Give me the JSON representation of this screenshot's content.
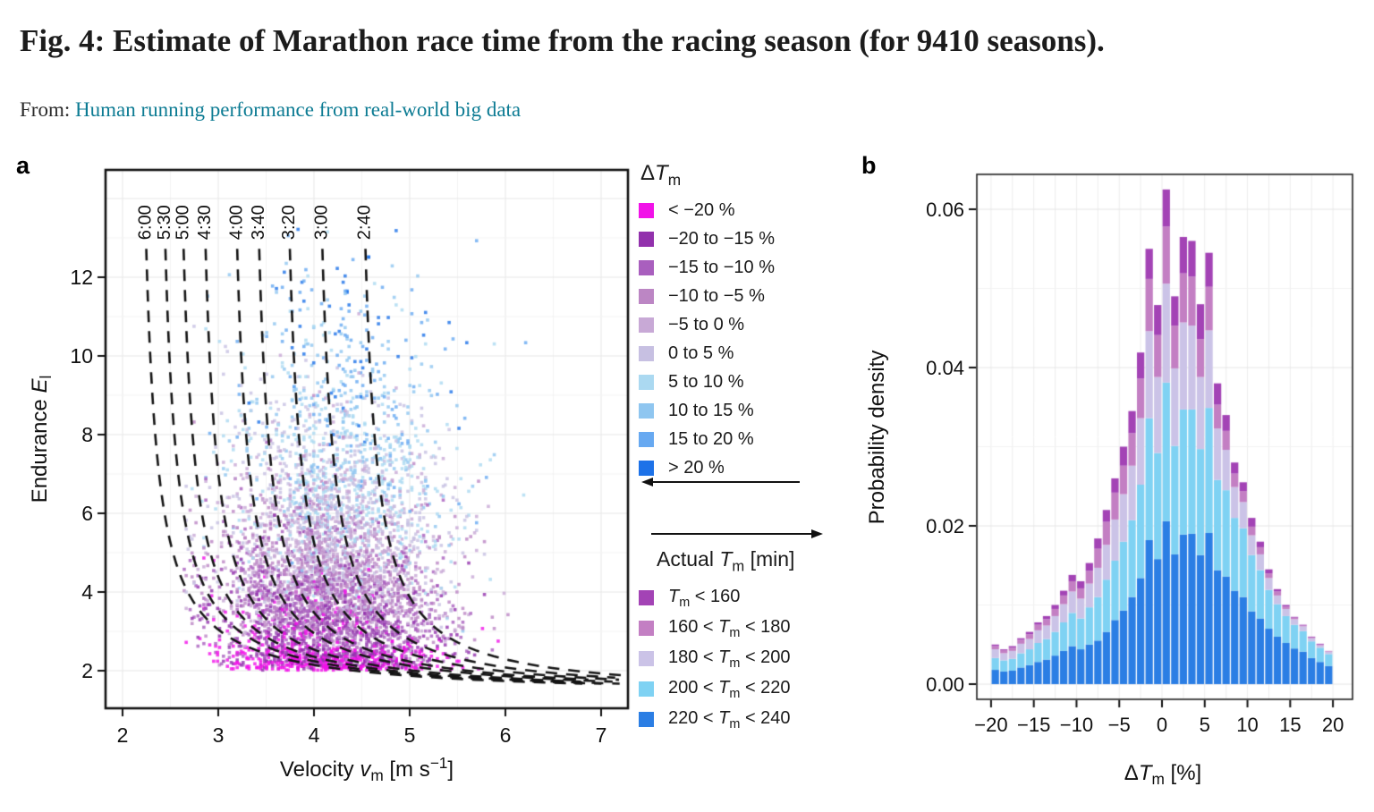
{
  "figure": {
    "title": "Fig. 4: Estimate of Marathon race time from the racing season (for 9410 seasons).",
    "from_label": "From:",
    "from_link_text": "Human running performance from real-world big data"
  },
  "styles": {
    "link_color": "#0c7b93",
    "title_color": "#1c1c1c",
    "axis_text_color": "#111111",
    "curve_color": "#141414",
    "grid_major": "#e7e7e7",
    "grid_minor": "#f3f3f3",
    "grid_b_vertical": "#ededed",
    "grid_b_major": "#e4e4e4",
    "grid_b_minor": "#f2f2f2",
    "box_color": "#111111"
  },
  "legend_delta": {
    "title_rich": [
      {
        "t": "Δ"
      },
      {
        "i": "T"
      },
      {
        "s": "m"
      }
    ],
    "items": [
      {
        "label": "< −20 %",
        "color": "#F112E8"
      },
      {
        "label": "−20 to −15 %",
        "color": "#9231AC"
      },
      {
        "label": "−15 to −10 %",
        "color": "#A95FBE"
      },
      {
        "label": "−10 to −5 %",
        "color": "#BC86C4"
      },
      {
        "label": "−5 to 0 %",
        "color": "#C8A9D6"
      },
      {
        "label": "0 to 5 %",
        "color": "#C7C0E2"
      },
      {
        "label": "5 to 10 %",
        "color": "#ABD9F1"
      },
      {
        "label": "10 to 15 %",
        "color": "#8FC6F0"
      },
      {
        "label": "15 to 20 %",
        "color": "#67A9F1"
      },
      {
        "label": "> 20 %",
        "color": "#1D72E8"
      }
    ],
    "arrow_left_icon": "arrow-left"
  },
  "legend_actual": {
    "title_rich": [
      {
        "t": "Actual "
      },
      {
        "i": "T"
      },
      {
        "s": "m"
      },
      {
        "t": " [min]"
      }
    ],
    "items": [
      {
        "label_rich": [
          {
            "i": "T"
          },
          {
            "s": "m"
          },
          {
            "t": " < 160"
          }
        ],
        "color": "#A343B5"
      },
      {
        "label_rich": [
          {
            "t": "160 < "
          },
          {
            "i": "T"
          },
          {
            "s": "m"
          },
          {
            "t": " < 180"
          }
        ],
        "color": "#C37FC3"
      },
      {
        "label_rich": [
          {
            "t": "180 < "
          },
          {
            "i": "T"
          },
          {
            "s": "m"
          },
          {
            "t": " < 200"
          }
        ],
        "color": "#CBC3E7"
      },
      {
        "label_rich": [
          {
            "t": "200 < "
          },
          {
            "i": "T"
          },
          {
            "s": "m"
          },
          {
            "t": " < 220"
          }
        ],
        "color": "#7FD2F3"
      },
      {
        "label_rich": [
          {
            "t": "220 < "
          },
          {
            "i": "T"
          },
          {
            "s": "m"
          },
          {
            "t": " < 240"
          }
        ],
        "color": "#2B7EE4"
      }
    ],
    "arrow_right_icon": "arrow-right"
  },
  "chart_data": [
    {
      "id": "a",
      "type": "scatter",
      "panel_letter": "a",
      "xlabel_rich": [
        {
          "t": "Velocity "
        },
        {
          "i": "v"
        },
        {
          "s": "m"
        },
        {
          "t": " [m s"
        },
        {
          "sup": "−1"
        },
        {
          "t": "]"
        }
      ],
      "ylabel_rich": [
        {
          "t": "Endurance "
        },
        {
          "i": "E"
        },
        {
          "s": "l"
        }
      ],
      "x_ticks": [
        2,
        3,
        4,
        5,
        6,
        7
      ],
      "y_ticks": [
        2,
        4,
        6,
        8,
        10,
        12
      ],
      "xlim": [
        1.82,
        7.28
      ],
      "ylim": [
        1.05,
        14.7
      ],
      "iso_time_curves": {
        "comment": "dashed curves of constant marathon time, x = a + b/(y - y0), a = v_top - 0.114",
        "b": 1.5,
        "y0": 1.35,
        "label_E": 12.95,
        "start_E": 12.72,
        "curves": [
          {
            "label": "6:00",
            "v_top": 2.23
          },
          {
            "label": "5:30",
            "v_top": 2.43
          },
          {
            "label": "5:00",
            "v_top": 2.62
          },
          {
            "label": "4:30",
            "v_top": 2.85
          },
          {
            "label": "4:00",
            "v_top": 3.18
          },
          {
            "label": "3:40",
            "v_top": 3.41
          },
          {
            "label": "3:20",
            "v_top": 3.73
          },
          {
            "label": "3:00",
            "v_top": 4.07
          },
          {
            "label": "2:40",
            "v_top": 4.52
          }
        ]
      },
      "point_categories": {
        "thresholds": [
          -20,
          -15,
          -10,
          -5,
          0,
          5,
          10,
          15,
          20
        ],
        "colors": [
          "#F112E8",
          "#9231AC",
          "#A95FBE",
          "#BC86C4",
          "#C8A9D6",
          "#C7C0E2",
          "#ABD9F1",
          "#8FC6F0",
          "#67A9F1",
          "#1D72E8"
        ]
      },
      "scatter_generator": {
        "comment": "9410 seasons in source; points synthesized to match visible density/pattern",
        "seed": 987654321,
        "n": 5200,
        "point_size": 3.6,
        "opacity": 0.8,
        "floor_fraction": 0.12,
        "floor": {
          "E_base": 2.02,
          "E_spread": 0.28,
          "v_mean": 4.25,
          "v_sd": 0.55,
          "v_min": 2.95,
          "v_max": 5.75
        },
        "main": {
          "E_base": 2.1,
          "gamma_scale": 1.5,
          "E_max": 13.3,
          "v_mean": 4.18,
          "v_sd": 0.6,
          "v_min": 2.62,
          "v_max": 6.92
        },
        "delta_model": {
          "c0": -28,
          "c1": 14.5,
          "v_coef": 1.8,
          "noise_sd": 6
        },
        "v_quantum": 0.0205,
        "E_quantum": 0.032
      }
    },
    {
      "id": "b",
      "type": "bar",
      "stacked": true,
      "panel_letter": "b",
      "xlabel_rich": [
        {
          "t": "Δ"
        },
        {
          "i": "T"
        },
        {
          "s": "m"
        },
        {
          "t": " [%]"
        }
      ],
      "ylabel": "Probability density",
      "x_ticks": [
        -20,
        -15,
        -10,
        -5,
        0,
        5,
        10,
        15,
        20
      ],
      "x_tick_labels": [
        "−20",
        "−15",
        "−10",
        "−5",
        "0",
        "5",
        "10",
        "15",
        "20"
      ],
      "y_ticks": [
        0,
        0.02,
        0.04,
        0.06
      ],
      "y_tick_labels": [
        "0.00",
        "0.02",
        "0.04",
        "0.06"
      ],
      "xlim": [
        -21.6,
        22.3
      ],
      "ylim": [
        0,
        0.0664
      ],
      "bins": {
        "first_center": -19.5,
        "width": 1,
        "count": 40
      },
      "series_bottom_to_top": [
        {
          "name": "220 < Tm < 240",
          "color": "#2B7EE4",
          "values": [
            0.0018,
            0.0016,
            0.0017,
            0.0021,
            0.0024,
            0.0028,
            0.0031,
            0.0036,
            0.0042,
            0.0048,
            0.0044,
            0.005,
            0.0055,
            0.0066,
            0.0081,
            0.0093,
            0.011,
            0.0134,
            0.0182,
            0.0158,
            0.0206,
            0.0164,
            0.0189,
            0.019,
            0.0163,
            0.0191,
            0.0144,
            0.0136,
            0.0118,
            0.011,
            0.0092,
            0.0083,
            0.007,
            0.006,
            0.0052,
            0.0045,
            0.0041,
            0.0033,
            0.0028,
            0.0023
          ]
        },
        {
          "name": "200 < Tm < 220",
          "color": "#7FD2F3",
          "values": [
            0.0015,
            0.0014,
            0.0015,
            0.0018,
            0.002,
            0.0024,
            0.0026,
            0.003,
            0.0036,
            0.0042,
            0.0039,
            0.0047,
            0.0055,
            0.0066,
            0.0075,
            0.0087,
            0.0097,
            0.0118,
            0.0154,
            0.0134,
            0.0175,
            0.0137,
            0.0158,
            0.0157,
            0.0134,
            0.0158,
            0.0114,
            0.0109,
            0.0092,
            0.0087,
            0.0071,
            0.0061,
            0.0049,
            0.0041,
            0.0034,
            0.003,
            0.0026,
            0.0021,
            0.0018,
            0.0015
          ]
        },
        {
          "name": "180 < Tm < 200",
          "color": "#CBC3E7",
          "values": [
            0.0011,
            0.0009,
            0.001,
            0.0012,
            0.0013,
            0.0016,
            0.0017,
            0.002,
            0.0023,
            0.0027,
            0.0025,
            0.003,
            0.0037,
            0.0044,
            0.0052,
            0.006,
            0.0069,
            0.0084,
            0.011,
            0.0096,
            0.0125,
            0.0098,
            0.011,
            0.0106,
            0.0091,
            0.0098,
            0.0065,
            0.0051,
            0.0039,
            0.0033,
            0.0025,
            0.002,
            0.0015,
            0.0011,
            0.0009,
            0.0007,
            0.0006,
            0.0004,
            0.0003,
            0.0003
          ]
        },
        {
          "name": "160 < Tm < 180",
          "color": "#C37FC3",
          "values": [
            0.0004,
            0.0004,
            0.0004,
            0.0005,
            0.0006,
            0.0007,
            0.0008,
            0.0009,
            0.0011,
            0.0013,
            0.0013,
            0.0016,
            0.0024,
            0.0029,
            0.0034,
            0.0036,
            0.0041,
            0.005,
            0.0066,
            0.0053,
            0.0072,
            0.0054,
            0.0062,
            0.0062,
            0.0048,
            0.0055,
            0.003,
            0.0024,
            0.0017,
            0.0014,
            0.0011,
            0.0009,
            0.0006,
            0.0005,
            0.0003,
            0.0002,
            0.0001,
            0.0001,
            0.0001,
            0.0001
          ]
        },
        {
          "name": "Tm < 160",
          "color": "#A343B5",
          "values": [
            0.0002,
            0.0001,
            0.0002,
            0.0002,
            0.0003,
            0.0003,
            0.0004,
            0.0005,
            0.0006,
            0.0008,
            0.0009,
            0.001,
            0.0013,
            0.0015,
            0.0018,
            0.0024,
            0.0028,
            0.0033,
            0.0038,
            0.0038,
            0.0047,
            0.0037,
            0.0046,
            0.0045,
            0.0044,
            0.0043,
            0.0027,
            0.002,
            0.0014,
            0.0011,
            0.0011,
            0.0007,
            0.0005,
            0.0003,
            0.0002,
            0.0001,
            0.0001,
            0.0001,
            0.0001,
            0.0
          ]
        }
      ]
    }
  ]
}
